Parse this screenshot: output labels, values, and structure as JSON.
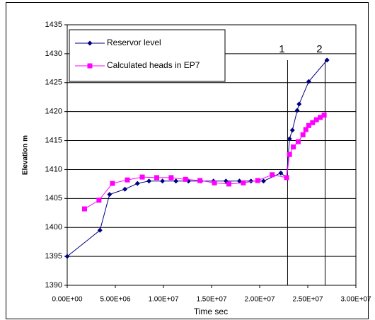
{
  "chart_data": {
    "type": "line",
    "xlabel": "Time sec",
    "ylabel": "Elevation m",
    "xlim": [
      0,
      30000000
    ],
    "ylim": [
      1390,
      1435
    ],
    "xticks": [
      {
        "value": 0,
        "label": "0.00E+00"
      },
      {
        "value": 5000000,
        "label": "5.00E+06"
      },
      {
        "value": 10000000,
        "label": "1.00E+07"
      },
      {
        "value": 15000000,
        "label": "1.50E+07"
      },
      {
        "value": 20000000,
        "label": "2.00E+07"
      },
      {
        "value": 25000000,
        "label": "2.50E+07"
      },
      {
        "value": 30000000,
        "label": "3.00E+07"
      }
    ],
    "yticks": [
      1390,
      1395,
      1400,
      1405,
      1410,
      1415,
      1420,
      1425,
      1430,
      1435
    ],
    "grid": true,
    "legend": "top-left",
    "annotations": [
      {
        "text": "1",
        "x": 22900000
      },
      {
        "text": "2",
        "x": 26800000
      }
    ],
    "series": [
      {
        "name": "Reservor level",
        "color": "#000080",
        "marker": "diamond",
        "x": [
          0,
          3400000,
          4400000,
          6000000,
          7300000,
          8500000,
          9900000,
          11300000,
          12600000,
          13900000,
          15200000,
          16500000,
          17900000,
          19100000,
          20400000,
          22200000,
          22800000,
          23100000,
          23400000,
          23900000,
          24100000,
          25100000,
          27000000
        ],
        "values": [
          1395,
          1399.5,
          1405.7,
          1406.6,
          1407.6,
          1408,
          1408,
          1408,
          1408,
          1408,
          1408,
          1408,
          1408,
          1408,
          1408,
          1409.4,
          1408.6,
          1415.3,
          1416.8,
          1420.2,
          1421.3,
          1425.2,
          1428.9
        ]
      },
      {
        "name": "Calculated heads in EP7",
        "color": "#ff00ff",
        "marker": "square",
        "x": [
          1800000,
          3300000,
          4700000,
          6250000,
          7800000,
          9300000,
          10800000,
          12300000,
          13800000,
          15300000,
          16800000,
          18300000,
          19800000,
          21300000,
          22800000,
          23100000,
          23500000,
          24000000,
          24500000,
          24800000,
          25100000,
          25500000,
          25900000,
          26300000,
          26700000
        ],
        "values": [
          1403.2,
          1404.7,
          1407.6,
          1408.2,
          1408.7,
          1408.6,
          1408.6,
          1408.3,
          1408.1,
          1407.7,
          1407.5,
          1407.7,
          1408.1,
          1409.1,
          1408.6,
          1412.6,
          1413.9,
          1414.8,
          1416,
          1416.9,
          1417.6,
          1418.1,
          1418.6,
          1419,
          1419.4
        ]
      }
    ]
  }
}
